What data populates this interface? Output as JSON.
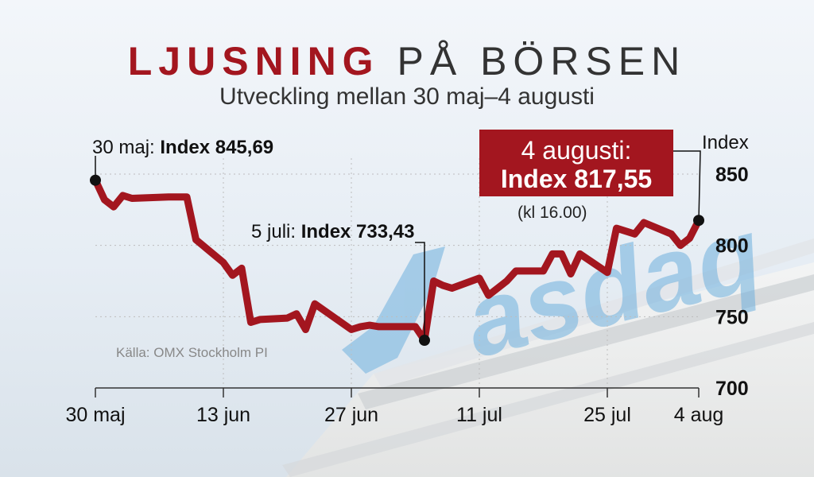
{
  "title_bold": "LJUSNING",
  "title_light": "PÅ BÖRSEN",
  "subtitle": "Utveckling mellan 30 maj–4 augusti",
  "source": "Källa: OMX Stockholm PI",
  "annotations": {
    "start": {
      "label": "30 maj:",
      "value": "Index 845,69"
    },
    "mid": {
      "label": "5 juli:",
      "value": "Index 733,43"
    },
    "end": {
      "line1": "4 augusti:",
      "line2": "Index 817,55",
      "note": "(kl 16.00)"
    }
  },
  "colors": {
    "line": "#a3161f",
    "callout": "#a3161f",
    "text": "#111111"
  },
  "chart_data": {
    "type": "line",
    "title": "LJUSNING PÅ BÖRSEN",
    "subtitle": "Utveckling mellan 30 maj–4 augusti",
    "ylabel": "Index",
    "ylim": [
      700,
      850
    ],
    "yticks": [
      700,
      750,
      800,
      850
    ],
    "xlim": [
      "2022-05-30",
      "2022-08-04"
    ],
    "xticks": [
      "2022-05-30",
      "2022-06-13",
      "2022-06-27",
      "2022-07-11",
      "2022-07-25",
      "2022-08-04"
    ],
    "xtick_labels": [
      "30 maj",
      "13 jun",
      "27 jun",
      "11 jul",
      "25 jul",
      "4 aug"
    ],
    "grid": true,
    "series": [
      {
        "x": [
          "2022-05-30",
          "2022-05-31",
          "2022-06-01",
          "2022-06-02",
          "2022-06-03",
          "2022-06-07",
          "2022-06-08",
          "2022-06-09",
          "2022-06-10",
          "2022-06-13",
          "2022-06-14",
          "2022-06-15",
          "2022-06-16",
          "2022-06-17",
          "2022-06-20",
          "2022-06-21",
          "2022-06-22",
          "2022-06-23",
          "2022-06-27",
          "2022-06-28",
          "2022-06-29",
          "2022-06-30",
          "2022-07-01",
          "2022-07-04",
          "2022-07-05",
          "2022-07-06",
          "2022-07-07",
          "2022-07-08",
          "2022-07-11",
          "2022-07-12",
          "2022-07-13",
          "2022-07-14",
          "2022-07-15",
          "2022-07-18",
          "2022-07-19",
          "2022-07-20",
          "2022-07-21",
          "2022-07-22",
          "2022-07-25",
          "2022-07-26",
          "2022-07-27",
          "2022-07-28",
          "2022-07-29",
          "2022-08-01",
          "2022-08-02",
          "2022-08-03",
          "2022-08-04"
        ],
        "y": [
          845.69,
          832,
          827,
          835,
          833,
          834,
          834,
          834,
          804,
          788,
          779,
          784,
          746,
          748,
          749,
          752,
          741,
          759,
          741,
          743,
          744,
          743,
          743,
          743,
          733.43,
          775,
          772,
          770,
          777,
          765,
          770,
          775,
          782,
          782,
          794,
          794,
          780,
          794,
          781,
          812,
          810,
          808,
          816,
          808,
          800,
          805,
          817.55
        ]
      }
    ]
  }
}
